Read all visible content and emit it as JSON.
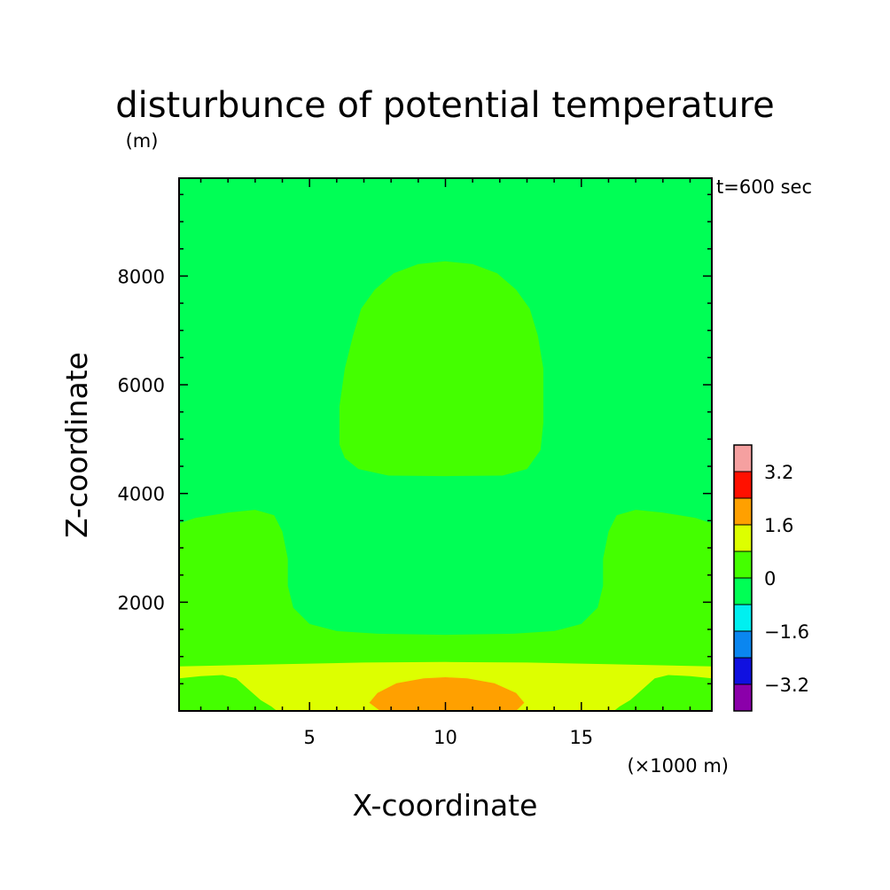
{
  "figure": {
    "title": "disturbunce of potential temperature",
    "subtitle": "(m)",
    "time_label": "t=600 sec"
  },
  "chart_data": {
    "type": "contour",
    "title": "disturbunce of potential temperature",
    "unit_note": "(m)",
    "annotation": "t=600 sec",
    "xlabel": "X-coordinate",
    "x_unit_label": "(×1000 m)",
    "ylabel": "Z-coordinate",
    "xlim": [
      0.2,
      19.8
    ],
    "ylim": [
      0,
      9800
    ],
    "x_ticks": [
      5,
      10,
      15
    ],
    "y_ticks": [
      2000,
      4000,
      6000,
      8000
    ],
    "grid": false,
    "colorbar": {
      "levels": [
        -4.0,
        -3.2,
        -2.4,
        -1.6,
        -0.8,
        0.0,
        0.8,
        1.6,
        2.4,
        3.2,
        4.0
      ],
      "tick_labels": [
        "3.2",
        "1.6",
        "0",
        "−1.6",
        "−3.2"
      ],
      "tick_values": [
        3.2,
        1.6,
        0,
        -1.6,
        -3.2
      ],
      "colors": [
        "#8b00aa",
        "#1010e0",
        "#0a86f0",
        "#00f0f0",
        "#00ff55",
        "#44ff00",
        "#ddff00",
        "#ffa000",
        "#ff1000",
        "#f5a0a0"
      ]
    },
    "regions": [
      {
        "name": "background",
        "range": [
          0.0,
          0.8
        ],
        "color": "#00ff55",
        "polygon": [
          [
            0.2,
            0
          ],
          [
            19.8,
            0
          ],
          [
            19.8,
            9800
          ],
          [
            0.2,
            9800
          ]
        ]
      },
      {
        "name": "upper-warm-bubble",
        "range": [
          0.8,
          1.6
        ],
        "color": "#44ff00",
        "polygon": [
          [
            6.1,
            4900
          ],
          [
            6.1,
            5600
          ],
          [
            6.3,
            6300
          ],
          [
            6.6,
            6900
          ],
          [
            6.9,
            7400
          ],
          [
            7.4,
            7750
          ],
          [
            8.1,
            8050
          ],
          [
            9.0,
            8220
          ],
          [
            10.0,
            8270
          ],
          [
            11.0,
            8220
          ],
          [
            11.9,
            8050
          ],
          [
            12.6,
            7750
          ],
          [
            13.1,
            7400
          ],
          [
            13.4,
            6900
          ],
          [
            13.6,
            6300
          ],
          [
            13.6,
            5300
          ],
          [
            13.5,
            4800
          ],
          [
            13.0,
            4450
          ],
          [
            12.1,
            4330
          ],
          [
            10.0,
            4320
          ],
          [
            7.9,
            4330
          ],
          [
            6.8,
            4450
          ],
          [
            6.3,
            4650
          ]
        ]
      },
      {
        "name": "lower-shoulder-band",
        "range": [
          0.8,
          1.6
        ],
        "color": "#44ff00",
        "polygon": [
          [
            0.2,
            0
          ],
          [
            19.8,
            0
          ],
          [
            19.8,
            3450
          ],
          [
            19.2,
            3550
          ],
          [
            18.0,
            3650
          ],
          [
            17.0,
            3700
          ],
          [
            16.3,
            3600
          ],
          [
            16.0,
            3300
          ],
          [
            15.8,
            2800
          ],
          [
            15.8,
            2300
          ],
          [
            15.6,
            1900
          ],
          [
            15.0,
            1600
          ],
          [
            14.0,
            1470
          ],
          [
            12.5,
            1420
          ],
          [
            10.0,
            1400
          ],
          [
            7.5,
            1420
          ],
          [
            6.0,
            1470
          ],
          [
            5.0,
            1600
          ],
          [
            4.4,
            1900
          ],
          [
            4.2,
            2300
          ],
          [
            4.2,
            2800
          ],
          [
            4.0,
            3300
          ],
          [
            3.7,
            3600
          ],
          [
            3.0,
            3700
          ],
          [
            2.0,
            3650
          ],
          [
            0.8,
            3550
          ],
          [
            0.2,
            3450
          ]
        ]
      },
      {
        "name": "surface-layer",
        "range": [
          1.6,
          2.4
        ],
        "color": "#ddff00",
        "polygon": [
          [
            0.2,
            0
          ],
          [
            19.8,
            0
          ],
          [
            19.8,
            580
          ],
          [
            19.8,
            820
          ],
          [
            16.0,
            860
          ],
          [
            13.0,
            890
          ],
          [
            10.0,
            900
          ],
          [
            7.0,
            890
          ],
          [
            4.0,
            860
          ],
          [
            0.2,
            820
          ],
          [
            0.2,
            580
          ]
        ]
      },
      {
        "name": "surface-left-pocket",
        "range": [
          0.8,
          1.6
        ],
        "color": "#44ff00",
        "polygon": [
          [
            0.2,
            0
          ],
          [
            3.8,
            0
          ],
          [
            3.6,
            80
          ],
          [
            3.2,
            200
          ],
          [
            2.7,
            420
          ],
          [
            2.3,
            600
          ],
          [
            1.8,
            660
          ],
          [
            1.0,
            640
          ],
          [
            0.2,
            600
          ]
        ]
      },
      {
        "name": "surface-right-pocket",
        "range": [
          0.8,
          1.6
        ],
        "color": "#44ff00",
        "polygon": [
          [
            16.2,
            0
          ],
          [
            19.8,
            0
          ],
          [
            19.8,
            600
          ],
          [
            19.0,
            640
          ],
          [
            18.2,
            660
          ],
          [
            17.7,
            600
          ],
          [
            17.3,
            420
          ],
          [
            16.8,
            200
          ],
          [
            16.4,
            80
          ]
        ]
      },
      {
        "name": "surface-core",
        "range": [
          2.4,
          3.2
        ],
        "color": "#ffa000",
        "polygon": [
          [
            7.6,
            0
          ],
          [
            12.6,
            0
          ],
          [
            12.9,
            150
          ],
          [
            12.6,
            330
          ],
          [
            11.8,
            510
          ],
          [
            10.8,
            600
          ],
          [
            10.0,
            620
          ],
          [
            9.2,
            600
          ],
          [
            8.2,
            510
          ],
          [
            7.5,
            330
          ],
          [
            7.2,
            150
          ]
        ]
      }
    ]
  }
}
